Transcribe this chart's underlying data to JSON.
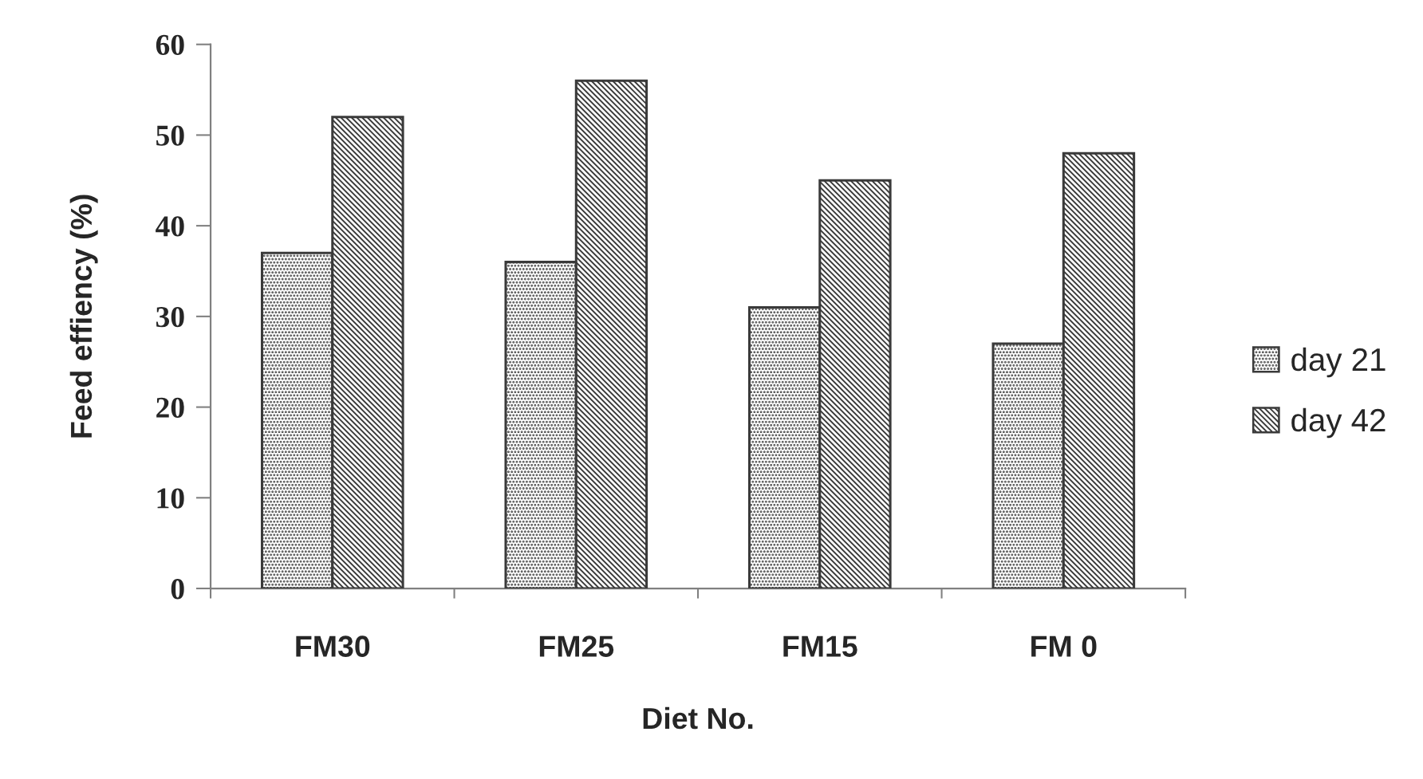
{
  "chart_data": {
    "type": "bar",
    "xlabel": "Diet No.",
    "ylabel": "Feed effiency (%)",
    "categories": [
      "FM30",
      "FM25",
      "FM15",
      "FM 0"
    ],
    "series": [
      {
        "name": "day 21",
        "color": "#3a3a3a",
        "values": [
          37,
          36,
          31,
          27
        ]
      },
      {
        "name": "day 42",
        "color": "#3a3a3a",
        "values": [
          52,
          56,
          45,
          48
        ]
      }
    ],
    "ylim": [
      0,
      60
    ],
    "yticks": [
      0,
      10,
      20,
      30,
      40,
      50,
      60
    ],
    "legend": "right"
  }
}
